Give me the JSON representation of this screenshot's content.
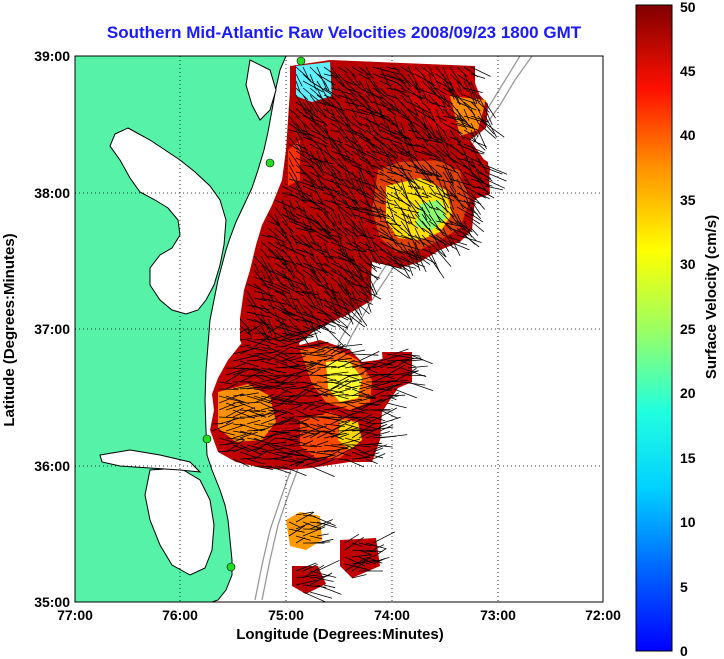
{
  "title": "Southern Mid-Atlantic Raw Velocities 2008/09/23 1800 GMT",
  "xlabel": "Longitude (Degrees:Minutes)",
  "ylabel": "Latitude (Degrees:Minutes)",
  "colorbar": {
    "label": "Surface Velocity (cm/s)",
    "min": 0,
    "max": 50,
    "ticks": [
      "0",
      "5",
      "10",
      "15",
      "20",
      "25",
      "30",
      "35",
      "40",
      "45",
      "50"
    ],
    "colormap": "jet"
  },
  "x_ticks": [
    "77:00",
    "76:00",
    "75:00",
    "74:00",
    "73:00",
    "72:00"
  ],
  "y_ticks": [
    "35:00",
    "36:00",
    "37:00",
    "38:00",
    "39:00"
  ],
  "colors": {
    "land": "#55f2a8",
    "ocean": "#ffffff",
    "coastline": "#000000",
    "bathymetry": "#9a9a9a",
    "station": "#22cc22",
    "title": "#1a1aff"
  }
}
